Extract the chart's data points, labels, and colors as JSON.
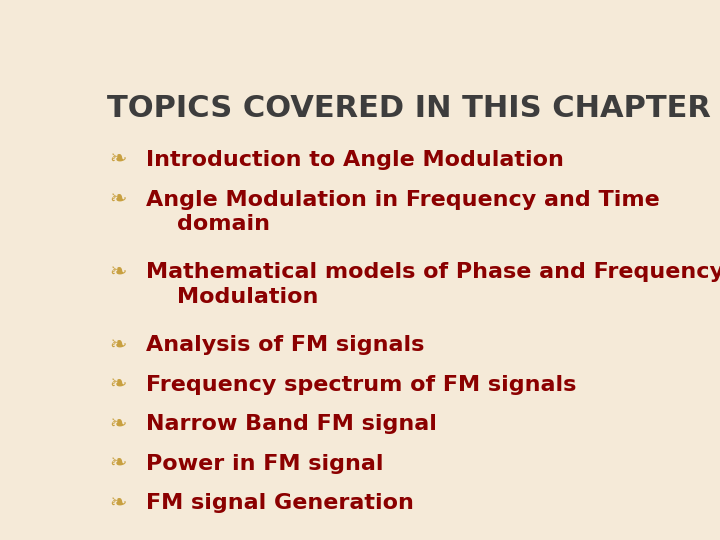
{
  "title": "TOPICS COVERED IN THIS CHAPTER",
  "title_color": "#3d3d3d",
  "title_fontsize": 22,
  "title_bold": true,
  "background_color": "#f5ead8",
  "bullet_color": "#c8a040",
  "text_color": "#8b0000",
  "text_fontsize": 16,
  "bullet_char": "❧",
  "items": [
    "Introduction to Angle Modulation",
    "Angle Modulation in Frequency and Time\n    domain",
    "Mathematical models of Phase and Frequency\n    Modulation",
    "Analysis of FM signals",
    "Frequency spectrum of FM signals",
    "Narrow Band FM signal",
    "Power in FM signal",
    "FM signal Generation"
  ],
  "item_line_counts": [
    1,
    2,
    2,
    1,
    1,
    1,
    1,
    1
  ]
}
